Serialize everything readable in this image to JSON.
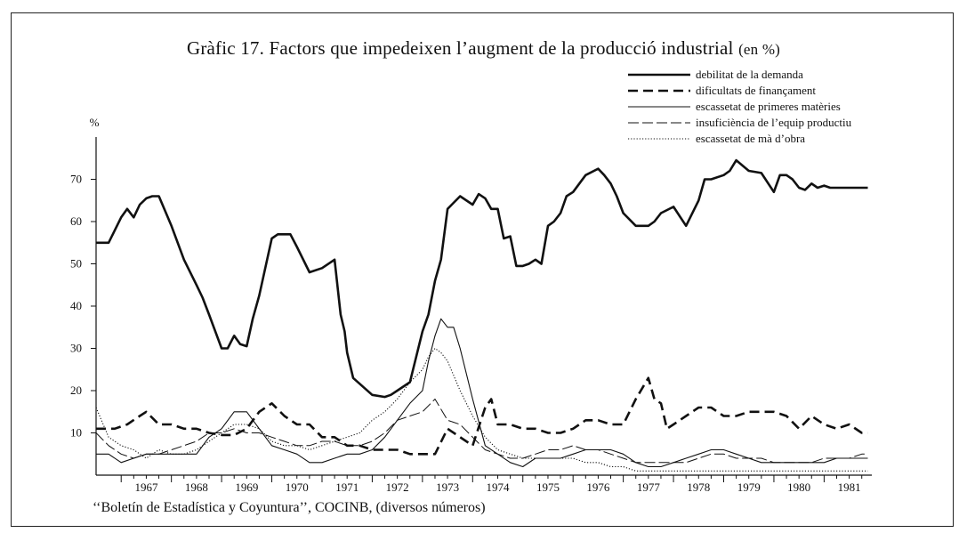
{
  "title": "Gràfic 17. Factors que impedeixen l’augment de la producció industrial",
  "title_unit": "(en %)",
  "source": "‘‘Boletín de Estadística y Coyuntura’’, COCINB, (diversos números)",
  "chart_data": {
    "type": "line",
    "ylabel": "%",
    "ylim": [
      0,
      80
    ],
    "xlim": [
      1966.5,
      1981.95
    ],
    "yticks": [
      10,
      20,
      30,
      40,
      50,
      60,
      70
    ],
    "xticks": [
      "1967",
      "1968",
      "1969",
      "1970",
      "1971",
      "1972",
      "1973",
      "1974",
      "1975",
      "1976",
      "1977",
      "1978",
      "1979",
      "1980",
      "1981"
    ],
    "grid": false,
    "legend_position": "top-right",
    "series": [
      {
        "name": "debilitat de la demanda",
        "style": "thick-solid",
        "x": [
          1966.5,
          1966.75,
          1967.0,
          1967.12,
          1967.25,
          1967.37,
          1967.5,
          1967.62,
          1967.75,
          1968.0,
          1968.25,
          1968.5,
          1968.62,
          1968.75,
          1969.0,
          1969.12,
          1969.25,
          1969.37,
          1969.5,
          1969.62,
          1969.75,
          1970.0,
          1970.12,
          1970.37,
          1970.5,
          1970.75,
          1971.0,
          1971.25,
          1971.37,
          1971.45,
          1971.5,
          1971.62,
          1972.0,
          1972.25,
          1972.37,
          1972.5,
          1972.75,
          1973.0,
          1973.12,
          1973.25,
          1973.37,
          1973.5,
          1973.75,
          1974.0,
          1974.12,
          1974.25,
          1974.37,
          1974.5,
          1974.62,
          1974.75,
          1974.87,
          1975.0,
          1975.12,
          1975.25,
          1975.37,
          1975.5,
          1975.62,
          1975.75,
          1975.87,
          1976.0,
          1976.25,
          1976.5,
          1976.62,
          1976.75,
          1976.87,
          1977.0,
          1977.25,
          1977.5,
          1977.62,
          1977.75,
          1978.0,
          1978.25,
          1978.5,
          1978.62,
          1978.75,
          1979.0,
          1979.12,
          1979.25,
          1979.5,
          1979.75,
          1980.0,
          1980.12,
          1980.25,
          1980.37,
          1980.5,
          1980.62,
          1980.75,
          1980.87,
          1981.0,
          1981.12,
          1981.25,
          1981.37,
          1981.5,
          1981.62,
          1981.75,
          1981.87
        ],
        "values": [
          55,
          55,
          61,
          63,
          61,
          64,
          65.5,
          66,
          66,
          59,
          51,
          45,
          42,
          38,
          30,
          30,
          33,
          31,
          30.5,
          37,
          42.5,
          56,
          57,
          57,
          54,
          48,
          49,
          51,
          38,
          34,
          29,
          23,
          19,
          18.5,
          19,
          20,
          22,
          34,
          38,
          46,
          51,
          63,
          66,
          64,
          66.5,
          65.5,
          63,
          63,
          56,
          56.5,
          49.5,
          49.5,
          50,
          51,
          50,
          59,
          60,
          62,
          66,
          67,
          71,
          72.5,
          71,
          69,
          66,
          62,
          59,
          59,
          60,
          62,
          63.5,
          59,
          65,
          70,
          70,
          71,
          72,
          74.5,
          72,
          71.5,
          67,
          71,
          71,
          70,
          68,
          67.5,
          69,
          68,
          68.5,
          68,
          68,
          68,
          68,
          68,
          68,
          68
        ]
      },
      {
        "name": "dificultats de finançament",
        "style": "thick-dashed",
        "x": [
          1966.5,
          1966.87,
          1967.12,
          1967.37,
          1967.5,
          1967.75,
          1968.0,
          1968.25,
          1968.5,
          1968.75,
          1969.0,
          1969.25,
          1969.5,
          1969.75,
          1970.0,
          1970.25,
          1970.5,
          1970.75,
          1971.0,
          1971.25,
          1971.5,
          1971.75,
          1972.0,
          1972.25,
          1972.5,
          1972.75,
          1973.0,
          1973.25,
          1973.5,
          1973.75,
          1974.0,
          1974.25,
          1974.37,
          1974.5,
          1974.75,
          1975.0,
          1975.25,
          1975.5,
          1975.75,
          1976.0,
          1976.25,
          1976.5,
          1976.75,
          1977.0,
          1977.25,
          1977.5,
          1977.62,
          1977.75,
          1977.87,
          1978.0,
          1978.25,
          1978.5,
          1978.75,
          1979.0,
          1979.25,
          1979.5,
          1979.75,
          1980.0,
          1980.25,
          1980.5,
          1980.75,
          1981.0,
          1981.25,
          1981.5,
          1981.75,
          1981.87
        ],
        "values": [
          11,
          11,
          12,
          14,
          15,
          12,
          12,
          11,
          11,
          10,
          9.5,
          9.5,
          11,
          15,
          17,
          14,
          12,
          12,
          9,
          9,
          7,
          7,
          6,
          6,
          6,
          5,
          5,
          5,
          11,
          9,
          7,
          16,
          18,
          12,
          12,
          11,
          11,
          10,
          10,
          11,
          13,
          13,
          12,
          12,
          18,
          23,
          18,
          17,
          11,
          12,
          14,
          16,
          16,
          14,
          14,
          15,
          15,
          15,
          14,
          11,
          14,
          12,
          11,
          12,
          10,
          10
        ]
      },
      {
        "name": "escassetat de primeres matèries",
        "style": "thin-solid",
        "x": [
          1966.5,
          1966.75,
          1967.0,
          1967.25,
          1967.5,
          1967.75,
          1968.0,
          1968.25,
          1968.5,
          1968.75,
          1969.0,
          1969.25,
          1969.5,
          1969.75,
          1970.0,
          1970.25,
          1970.5,
          1970.75,
          1971.0,
          1971.25,
          1971.5,
          1971.75,
          1972.0,
          1972.25,
          1972.5,
          1972.75,
          1973.0,
          1973.12,
          1973.25,
          1973.37,
          1973.5,
          1973.62,
          1973.75,
          1974.0,
          1974.25,
          1974.5,
          1974.75,
          1975.0,
          1975.25,
          1975.5,
          1975.75,
          1976.0,
          1976.25,
          1976.5,
          1976.75,
          1977.0,
          1977.25,
          1977.5,
          1977.75,
          1978.0,
          1978.25,
          1978.5,
          1978.75,
          1979.0,
          1979.25,
          1979.5,
          1979.75,
          1980.0,
          1980.25,
          1980.5,
          1980.75,
          1981.0,
          1981.25,
          1981.5,
          1981.75,
          1981.87
        ],
        "values": [
          5,
          5,
          3,
          4,
          5,
          5,
          5,
          5,
          5,
          9,
          11,
          15,
          15,
          11,
          7,
          6,
          5,
          3,
          3,
          4,
          5,
          5,
          6,
          9,
          13,
          17,
          20,
          27,
          33,
          37,
          35,
          35,
          30,
          18,
          7,
          5,
          3,
          2,
          4,
          4,
          4,
          5,
          6,
          6,
          6,
          5,
          3,
          2,
          2,
          3,
          4,
          5,
          6,
          6,
          5,
          4,
          3,
          3,
          3,
          3,
          3,
          3,
          4,
          4,
          4,
          4
        ]
      },
      {
        "name": "insuficiència de l’equip productiu",
        "style": "thin-long-dash",
        "x": [
          1966.5,
          1966.75,
          1967.0,
          1967.25,
          1967.5,
          1967.75,
          1968.0,
          1968.25,
          1968.5,
          1968.75,
          1969.0,
          1969.25,
          1969.5,
          1969.75,
          1970.0,
          1970.25,
          1970.5,
          1970.75,
          1971.0,
          1971.25,
          1971.5,
          1971.75,
          1972.0,
          1972.25,
          1972.5,
          1972.75,
          1973.0,
          1973.25,
          1973.5,
          1973.75,
          1974.0,
          1974.25,
          1974.5,
          1974.75,
          1975.0,
          1975.25,
          1975.5,
          1975.75,
          1976.0,
          1976.25,
          1976.5,
          1976.75,
          1977.0,
          1977.25,
          1977.5,
          1977.75,
          1978.0,
          1978.25,
          1978.5,
          1978.75,
          1979.0,
          1979.25,
          1979.5,
          1979.75,
          1980.0,
          1980.25,
          1980.5,
          1980.75,
          1981.0,
          1981.25,
          1981.5,
          1981.75,
          1981.87
        ],
        "values": [
          10,
          7,
          5,
          4,
          5,
          5,
          6,
          7,
          8,
          10,
          10,
          11,
          10,
          10,
          9,
          8,
          7,
          7,
          8,
          8,
          7,
          7,
          8,
          10,
          13,
          14,
          15,
          18,
          13,
          12,
          9,
          6,
          5,
          4,
          4,
          5,
          6,
          6,
          7,
          6,
          6,
          5,
          4,
          3,
          3,
          3,
          3,
          3,
          4,
          5,
          5,
          4,
          4,
          4,
          3,
          3,
          3,
          3,
          4,
          4,
          4,
          5,
          5
        ]
      },
      {
        "name": "escassetat de mà d’obra",
        "style": "dotted",
        "x": [
          1966.5,
          1966.75,
          1967.0,
          1967.25,
          1967.5,
          1967.75,
          1968.0,
          1968.25,
          1968.5,
          1968.75,
          1969.0,
          1969.25,
          1969.5,
          1969.75,
          1970.0,
          1970.25,
          1970.5,
          1970.75,
          1971.0,
          1971.25,
          1971.5,
          1971.75,
          1972.0,
          1972.25,
          1972.5,
          1972.75,
          1973.0,
          1973.12,
          1973.25,
          1973.37,
          1973.5,
          1973.75,
          1974.0,
          1974.25,
          1974.5,
          1974.75,
          1975.0,
          1975.25,
          1975.5,
          1975.75,
          1976.0,
          1976.25,
          1976.5,
          1976.75,
          1977.0,
          1977.25,
          1977.5,
          1977.75,
          1978.0,
          1978.25,
          1978.5,
          1978.75,
          1979.0,
          1979.25,
          1979.5,
          1979.75,
          1980.0,
          1980.25,
          1980.5,
          1980.75,
          1981.0,
          1981.25,
          1981.5,
          1981.75,
          1981.87
        ],
        "values": [
          16,
          9,
          7,
          6,
          4,
          6,
          5,
          5,
          6,
          8,
          10,
          12,
          12,
          11,
          8,
          7,
          7,
          6,
          7,
          8,
          9,
          10,
          13,
          15,
          18,
          22,
          25,
          28,
          30,
          29,
          27,
          20,
          14,
          9,
          6,
          5,
          4,
          4,
          4,
          4,
          4,
          3,
          3,
          2,
          2,
          1,
          1,
          1,
          1,
          1,
          1,
          1,
          1,
          1,
          1,
          1,
          1,
          1,
          1,
          1,
          1,
          1,
          1,
          1,
          1
        ]
      }
    ]
  }
}
